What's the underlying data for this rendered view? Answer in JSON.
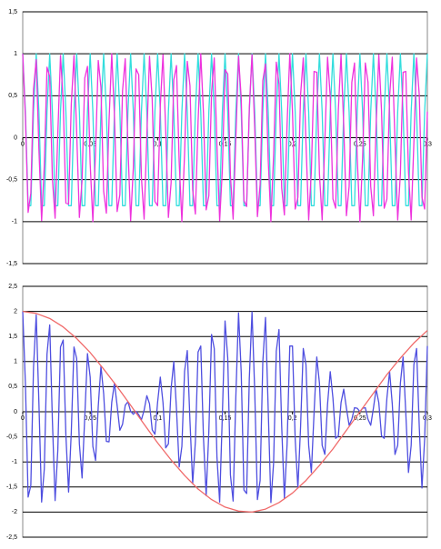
{
  "chart_data": [
    {
      "type": "line",
      "x": [
        0,
        0.002,
        0.004,
        0.006,
        0.008,
        0.01,
        0.012,
        0.014,
        0.016,
        0.018,
        0.02,
        0.022,
        0.024,
        0.026,
        0.028,
        0.03,
        0.032,
        0.034,
        0.036,
        0.038,
        0.04,
        0.042,
        0.044,
        0.046,
        0.048,
        0.05,
        0.052,
        0.054,
        0.056,
        0.058,
        0.06,
        0.062,
        0.064,
        0.066,
        0.068,
        0.07,
        0.072,
        0.074,
        0.076,
        0.078,
        0.08,
        0.082,
        0.084,
        0.086,
        0.088,
        0.09,
        0.092,
        0.094,
        0.096,
        0.098,
        0.1,
        0.102,
        0.104,
        0.106,
        0.108,
        0.11,
        0.112,
        0.114,
        0.116,
        0.118,
        0.12,
        0.122,
        0.124,
        0.126,
        0.128,
        0.13,
        0.132,
        0.134,
        0.136,
        0.138,
        0.14,
        0.142,
        0.144,
        0.146,
        0.148,
        0.15,
        0.152,
        0.154,
        0.156,
        0.158,
        0.16,
        0.162,
        0.164,
        0.166,
        0.168,
        0.17,
        0.172,
        0.174,
        0.176,
        0.178,
        0.18,
        0.182,
        0.184,
        0.186,
        0.188,
        0.19,
        0.192,
        0.194,
        0.196,
        0.198,
        0.2,
        0.202,
        0.204,
        0.206,
        0.208,
        0.21,
        0.212,
        0.214,
        0.216,
        0.218,
        0.22,
        0.222,
        0.224,
        0.226,
        0.228,
        0.23,
        0.232,
        0.234,
        0.236,
        0.238,
        0.24,
        0.242,
        0.244,
        0.246,
        0.248,
        0.25,
        0.252,
        0.254,
        0.256,
        0.258,
        0.26,
        0.262,
        0.264,
        0.266,
        0.268,
        0.27,
        0.272,
        0.274,
        0.276,
        0.278,
        0.28,
        0.282,
        0.284,
        0.286,
        0.288,
        0.29,
        0.292,
        0.294,
        0.296,
        0.298,
        0.3
      ],
      "series": [
        {
          "color": "#33dddd",
          "values": [
            1,
            0.31,
            -0.81,
            -0.81,
            0.31,
            1,
            0.31,
            -0.81,
            -0.81,
            0.31,
            1,
            0.31,
            -0.81,
            -0.81,
            0.31,
            1,
            0.31,
            -0.81,
            -0.81,
            0.31,
            1,
            0.31,
            -0.81,
            -0.81,
            0.31,
            1,
            0.31,
            -0.81,
            -0.81,
            0.31,
            1,
            0.31,
            -0.81,
            -0.81,
            0.31,
            1,
            0.31,
            -0.81,
            -0.81,
            0.31,
            1,
            0.31,
            -0.81,
            -0.81,
            0.31,
            1,
            0.31,
            -0.81,
            -0.81,
            0.31,
            1,
            0.31,
            -0.81,
            -0.81,
            0.31,
            1,
            0.31,
            -0.81,
            -0.81,
            0.31,
            1,
            0.31,
            -0.81,
            -0.81,
            0.31,
            1,
            0.31,
            -0.81,
            -0.81,
            0.31,
            1,
            0.31,
            -0.81,
            -0.81,
            0.31,
            1,
            0.31,
            -0.81,
            -0.81,
            0.31,
            1,
            0.31,
            -0.81,
            -0.81,
            0.31,
            1,
            0.31,
            -0.81,
            -0.81,
            0.31,
            1,
            0.31,
            -0.81,
            -0.81,
            0.31,
            1,
            0.31,
            -0.81,
            -0.81,
            0.31,
            1,
            0.31,
            -0.81,
            -0.81,
            0.31,
            1,
            0.31,
            -0.81,
            -0.81,
            0.31,
            1,
            0.31,
            -0.81,
            -0.81,
            0.31,
            1,
            0.31,
            -0.81,
            -0.81,
            0.31,
            1,
            0.31,
            -0.81,
            -0.81,
            0.31,
            1,
            0.31,
            -0.81,
            -0.81,
            0.31,
            1,
            0.31,
            -0.81,
            -0.81,
            0.31,
            1,
            0.31,
            -0.81,
            -0.81,
            0.31,
            1,
            0.31,
            -0.81,
            -0.81,
            0.31,
            1,
            0.31,
            -0.81,
            -0.81,
            0.31,
            1
          ]
        },
        {
          "color": "#ee33dd",
          "values": [
            1,
            0.24,
            -0.89,
            -0.66,
            0.58,
            0.93,
            -0.14,
            -0.99,
            -0.33,
            0.84,
            0.73,
            -0.49,
            -0.96,
            0.04,
            0.98,
            0.43,
            -0.78,
            -0.79,
            0.4,
            0.98,
            0.06,
            -0.95,
            -0.51,
            0.71,
            0.85,
            -0.31,
            -1,
            -0.16,
            0.92,
            0.6,
            -0.64,
            -0.9,
            0.21,
            1,
            0.26,
            -0.88,
            -0.68,
            0.56,
            0.94,
            -0.11,
            -0.99,
            -0.36,
            0.82,
            0.75,
            -0.47,
            -0.97,
            0.01,
            0.97,
            0.45,
            -0.76,
            -0.81,
            0.38,
            0.99,
            0.09,
            -0.95,
            -0.54,
            0.69,
            0.86,
            -0.29,
            -1,
            -0.19,
            0.91,
            0.62,
            -0.62,
            -0.91,
            0.19,
            1,
            0.29,
            -0.86,
            -0.69,
            0.54,
            0.95,
            -0.09,
            -0.99,
            -0.38,
            0.81,
            0.76,
            -0.45,
            -0.97,
            -0.01,
            0.97,
            0.47,
            -0.75,
            -0.82,
            0.36,
            0.99,
            0.11,
            -0.94,
            -0.56,
            0.68,
            0.88,
            -0.26,
            -1,
            -0.21,
            0.9,
            0.64,
            -0.6,
            -0.92,
            0.16,
            1,
            0.31,
            -0.85,
            -0.71,
            0.51,
            0.95,
            -0.06,
            -0.98,
            -0.4,
            0.79,
            0.78,
            -0.43,
            -0.98,
            -0.04,
            0.96,
            0.49,
            -0.73,
            -0.84,
            0.33,
            0.99,
            0.14,
            -0.93,
            -0.58,
            0.66,
            0.89,
            -0.24,
            -1,
            -0.24,
            0.89,
            0.66,
            -0.58,
            -0.93,
            0.14,
            0.99,
            0.33,
            -0.84,
            -0.73,
            0.49,
            0.96,
            -0.04,
            -0.98,
            -0.43,
            0.78,
            0.79,
            -0.4,
            -0.98,
            -0.06,
            0.95,
            0.51,
            -0.71,
            -0.85,
            0.31
          ]
        }
      ],
      "xlim": [
        0,
        0.3
      ],
      "xticks": [
        0,
        {
          "value": 0.05,
          "label": "0,05"
        },
        {
          "value": 0.1,
          "label": "0,1"
        },
        {
          "value": 0.15,
          "label": "0,15"
        },
        {
          "value": 0.2,
          "label": "0,2"
        },
        {
          "value": 0.25,
          "label": "0,25"
        },
        {
          "value": 0.3,
          "label": "0,3"
        }
      ],
      "ylim": [
        -1.5,
        1.5
      ],
      "yticks": [
        {
          "value": -1.5,
          "label": "-1,5"
        },
        -1,
        {
          "value": -0.5,
          "label": "-0,5"
        },
        0,
        {
          "value": 0.5,
          "label": "0,5"
        },
        1,
        {
          "value": 1.5,
          "label": "1,5"
        }
      ],
      "grid": true
    },
    {
      "type": "line",
      "x": [
        0,
        0.002,
        0.004,
        0.006,
        0.008,
        0.01,
        0.012,
        0.014,
        0.016,
        0.018,
        0.02,
        0.022,
        0.024,
        0.026,
        0.028,
        0.03,
        0.032,
        0.034,
        0.036,
        0.038,
        0.04,
        0.042,
        0.044,
        0.046,
        0.048,
        0.05,
        0.052,
        0.054,
        0.056,
        0.058,
        0.06,
        0.062,
        0.064,
        0.066,
        0.068,
        0.07,
        0.072,
        0.074,
        0.076,
        0.078,
        0.08,
        0.082,
        0.084,
        0.086,
        0.088,
        0.09,
        0.092,
        0.094,
        0.096,
        0.098,
        0.1,
        0.102,
        0.104,
        0.106,
        0.108,
        0.11,
        0.112,
        0.114,
        0.116,
        0.118,
        0.12,
        0.122,
        0.124,
        0.126,
        0.128,
        0.13,
        0.132,
        0.134,
        0.136,
        0.138,
        0.14,
        0.142,
        0.144,
        0.146,
        0.148,
        0.15,
        0.152,
        0.154,
        0.156,
        0.158,
        0.16,
        0.162,
        0.164,
        0.166,
        0.168,
        0.17,
        0.172,
        0.174,
        0.176,
        0.178,
        0.18,
        0.182,
        0.184,
        0.186,
        0.188,
        0.19,
        0.192,
        0.194,
        0.196,
        0.198,
        0.2,
        0.202,
        0.204,
        0.206,
        0.208,
        0.21,
        0.212,
        0.214,
        0.216,
        0.218,
        0.22,
        0.222,
        0.224,
        0.226,
        0.228,
        0.23,
        0.232,
        0.234,
        0.236,
        0.238,
        0.24,
        0.242,
        0.244,
        0.246,
        0.248,
        0.25,
        0.252,
        0.254,
        0.256,
        0.258,
        0.26,
        0.262,
        0.264,
        0.266,
        0.268,
        0.27,
        0.272,
        0.274,
        0.276,
        0.278,
        0.28,
        0.282,
        0.284,
        0.286,
        0.288,
        0.29,
        0.292,
        0.294,
        0.296,
        0.298,
        0.3
      ],
      "series": [
        {
          "color": "#4f4fe0",
          "values": [
            2,
            0.55,
            -1.7,
            -1.47,
            0.89,
            1.93,
            0.17,
            -1.8,
            -1.14,
            1.15,
            1.73,
            -0.18,
            -1.77,
            -0.77,
            1.29,
            1.43,
            -0.47,
            -1.6,
            -0.41,
            1.29,
            1.06,
            -0.64,
            -1.32,
            -0.1,
            1.16,
            0.69,
            -0.69,
            -0.97,
            0.11,
            0.91,
            0.36,
            -0.59,
            -0.6,
            0.19,
            0.57,
            0.12,
            -0.37,
            -0.25,
            0.13,
            0.2,
            0.01,
            -0.05,
            0.01,
            -0.06,
            -0.16,
            0.03,
            0.32,
            0.16,
            -0.36,
            -0.45,
            0.19,
            0.69,
            0.18,
            -0.72,
            -0.64,
            0.46,
            1,
            0.05,
            -1.1,
            -0.69,
            0.81,
            1.22,
            -0.19,
            -1.43,
            -0.6,
            1.19,
            1.31,
            -0.52,
            -1.67,
            -0.38,
            1.54,
            1.26,
            -0.9,
            -1.8,
            -0.07,
            1.81,
            1.07,
            -1.26,
            -1.78,
            0.3,
            1.97,
            0.78,
            -1.56,
            -1.63,
            0.67,
            1.99,
            0.42,
            -1.75,
            -1.37,
            0.99,
            1.88,
            0.05,
            -1.81,
            -1.02,
            1.21,
            1.64,
            -0.29,
            -1.73,
            -0.65,
            1.31,
            1.31,
            -0.54,
            -1.52,
            -0.3,
            1.26,
            0.94,
            -0.67,
            -1.21,
            -0.02,
            1.09,
            0.57,
            -0.67,
            -0.85,
            0.15,
            0.8,
            0.27,
            -0.53,
            -0.48,
            0.18,
            0.45,
            0.07,
            -0.27,
            -0.15,
            0.08,
            0.07,
            0,
            0.07,
            0.08,
            -0.15,
            -0.27,
            0.07,
            0.45,
            0.18,
            -0.48,
            -0.53,
            0.27,
            0.8,
            0.15,
            -0.85,
            -0.67,
            0.57,
            1.09,
            -0.02,
            -1.21,
            -0.67,
            0.94,
            1.26,
            -0.3,
            -1.52,
            -0.54,
            1.31
          ]
        },
        {
          "color": "#f06a6a",
          "x": [
            0,
            0.01,
            0.02,
            0.03,
            0.04,
            0.05,
            0.06,
            0.07,
            0.08,
            0.09,
            0.1,
            0.11,
            0.12,
            0.13,
            0.14,
            0.15,
            0.16,
            0.17,
            0.18,
            0.19,
            0.2,
            0.21,
            0.22,
            0.23,
            0.24,
            0.25,
            0.26,
            0.27,
            0.28,
            0.29,
            0.3
          ],
          "values": [
            2,
            1.96,
            1.86,
            1.69,
            1.46,
            1.18,
            0.85,
            0.5,
            0.13,
            -0.25,
            -0.62,
            -0.96,
            -1.27,
            -1.54,
            -1.75,
            -1.9,
            -1.98,
            -2,
            -1.94,
            -1.81,
            -1.62,
            -1.37,
            -1.07,
            -0.74,
            -0.37,
            0,
            0.37,
            0.74,
            1.07,
            1.37,
            1.62
          ]
        }
      ],
      "xlim": [
        0,
        0.3
      ],
      "xticks": [
        0,
        {
          "value": 0.05,
          "label": "0,05"
        },
        {
          "value": 0.1,
          "label": "0,1"
        },
        {
          "value": 0.15,
          "label": "0,15"
        },
        {
          "value": 0.2,
          "label": "0,2"
        },
        {
          "value": 0.25,
          "label": "0,25"
        },
        {
          "value": 0.3,
          "label": "0,3"
        }
      ],
      "ylim": [
        -2.5,
        2.5
      ],
      "yticks": [
        {
          "value": -2.5,
          "label": "-2,5"
        },
        -2,
        {
          "value": -1.5,
          "label": "-1,5"
        },
        -1,
        {
          "value": -0.5,
          "label": "-0,5"
        },
        0,
        {
          "value": 0.5,
          "label": "0,5"
        },
        1,
        {
          "value": 1.5,
          "label": "1,5"
        },
        2,
        {
          "value": 2.5,
          "label": "2,5"
        }
      ],
      "grid": true
    }
  ]
}
